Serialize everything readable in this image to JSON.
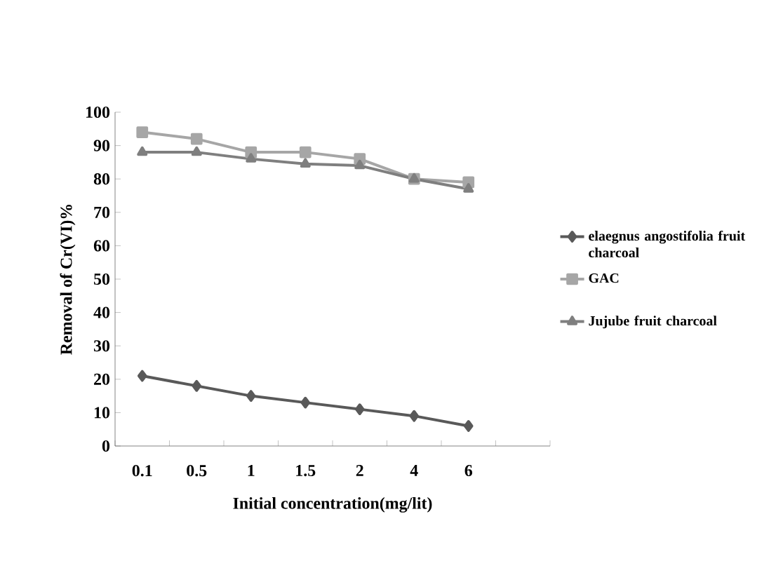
{
  "chart_data": {
    "type": "line",
    "xlabel": "Initial concentration(mg/lit)",
    "ylabel": "Removal of Cr(VI)%",
    "categories": [
      "0.1",
      "0.5",
      "1",
      "1.5",
      "2",
      "4",
      "6",
      null
    ],
    "series": [
      {
        "name": "elaegnus angostifolia fruit charcoal",
        "color": "#595959",
        "marker": "diamond",
        "values": [
          21,
          18,
          15,
          13,
          11,
          9,
          6,
          null
        ]
      },
      {
        "name": "GAC",
        "color": "#a6a6a6",
        "marker": "square",
        "values": [
          94,
          92,
          88,
          88,
          86,
          80,
          79,
          null
        ]
      },
      {
        "name": "Jujube fruit charcoal",
        "color": "#7f7f7f",
        "marker": "triangle",
        "values": [
          88,
          88,
          86,
          84.5,
          84,
          80,
          77,
          null
        ]
      }
    ],
    "ylim": [
      0,
      100
    ],
    "yticks": [
      0,
      10,
      20,
      30,
      40,
      50,
      60,
      70,
      80,
      90,
      100
    ],
    "grid": false,
    "legend": "right",
    "line_style": "solid"
  }
}
